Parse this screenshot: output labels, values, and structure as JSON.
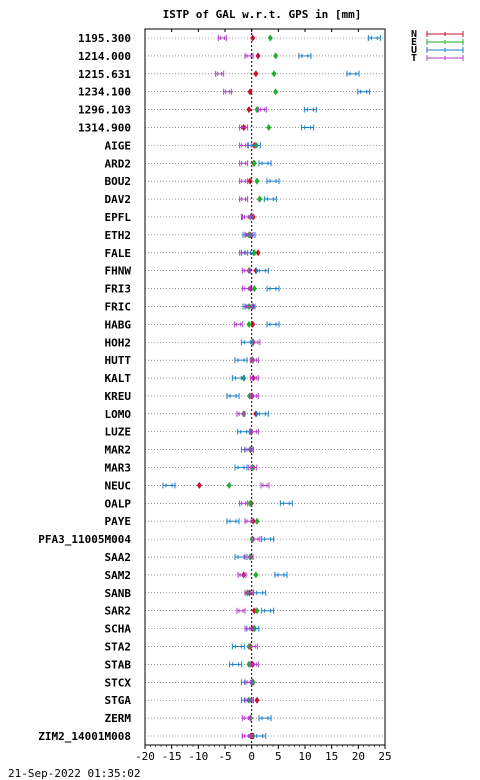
{
  "title": "ISTP of GAL w.r.t. GPS in [mm]",
  "footer": "21-Sep-2022 01:35:02",
  "colors": {
    "N": "#c8102e",
    "E": "#1fae2e",
    "U": "#1a7fc8",
    "T": "#b43cc8"
  },
  "chart_data": {
    "type": "scatter",
    "title": "ISTP of GAL w.r.t. GPS in [mm]",
    "xlim": [
      -20,
      25
    ],
    "xticks": [
      "-20",
      "-15",
      "-10",
      "-5",
      "0",
      "5",
      "10",
      "15",
      "20",
      "25"
    ],
    "grid": true,
    "legend": {
      "position": "top-right",
      "entries": [
        "N",
        "E",
        "U",
        "T"
      ]
    },
    "categories": [
      "1195.300",
      "1214.000",
      "1215.631",
      "1234.100",
      "1296.103",
      "1314.900",
      "AIGE",
      "ARD2",
      "BOU2",
      "DAV2",
      "EPFL",
      "ETH2",
      "FALE",
      "FHNW",
      "FRI3",
      "FRIC",
      "HABG",
      "HOH2",
      "HUTT",
      "KALT",
      "KREU",
      "LOMO",
      "LUZE",
      "MAR2",
      "MAR3",
      "NEUC",
      "OALP",
      "PAYE",
      "PFA3_11005M004",
      "SAA2",
      "SAM2",
      "SANB",
      "SAR2",
      "SCHA",
      "STA2",
      "STAB",
      "STCX",
      "STGA",
      "ZERM",
      "ZIM2_14001M008"
    ],
    "series": [
      {
        "name": "N",
        "values": [
          0.2,
          1.2,
          0.8,
          -0.3,
          -0.5,
          -1.5,
          0.5,
          0.4,
          -0.3,
          1.5,
          0.3,
          -0.3,
          1.2,
          0.8,
          -0.2,
          0.2,
          0.2,
          0.3,
          0.2,
          0.3,
          0.1,
          0.8,
          -0.1,
          -0.2,
          0.2,
          -9.8,
          -0.1,
          0.3,
          0.2,
          -0.2,
          -1.5,
          -0.4,
          0.5,
          0.2,
          -0.2,
          0.2,
          0.1,
          1.0,
          -0.2,
          0.2
        ]
      },
      {
        "name": "E",
        "values": [
          3.5,
          4.5,
          4.2,
          4.5,
          1.0,
          3.2,
          0.8,
          0.5,
          1.0,
          1.5,
          -0.2,
          -0.5,
          0.5,
          -0.5,
          0.5,
          -0.5,
          -0.5,
          0.2,
          0.1,
          -1.5,
          -0.4,
          -1.5,
          -0.2,
          -0.3,
          0.1,
          -4.2,
          -0.3,
          1.0,
          0.1,
          -0.3,
          0.8,
          -0.8,
          1.0,
          0.5,
          -0.5,
          -0.5,
          0.3,
          -0.5,
          -0.2,
          -0.2
        ]
      },
      {
        "name": "U",
        "values": [
          23.0,
          10.0,
          19.0,
          21.0,
          11.0,
          10.5,
          0.5,
          2.5,
          4.0,
          3.5,
          -0.8,
          -0.5,
          -0.8,
          2.0,
          4.0,
          -0.5,
          4.0,
          -0.8,
          -2.0,
          -2.5,
          -3.5,
          2.0,
          -1.5,
          -0.8,
          -2.0,
          -15.5,
          6.5,
          -3.5,
          3.0,
          -2.0,
          5.5,
          1.5,
          3.0,
          0.2,
          -2.5,
          -3.0,
          -0.8,
          -0.8,
          2.5,
          1.5
        ]
      },
      {
        "name": "T",
        "values": [
          -5.5,
          -0.5,
          -6.0,
          -4.5,
          2.0,
          -1.5,
          -1.5,
          -1.5,
          -1.5,
          -1.5,
          -1.0,
          -0.5,
          -1.5,
          -1.0,
          -1.0,
          -0.5,
          -2.5,
          0.8,
          0.5,
          0.5,
          0.5,
          -2.0,
          0.5,
          -0.5,
          0.2,
          2.5,
          -1.5,
          -0.5,
          0.8,
          -0.5,
          -1.8,
          -0.5,
          -2.0,
          -0.5,
          0.3,
          0.5,
          -0.5,
          -0.5,
          -1.0,
          -1.0
        ]
      }
    ]
  }
}
